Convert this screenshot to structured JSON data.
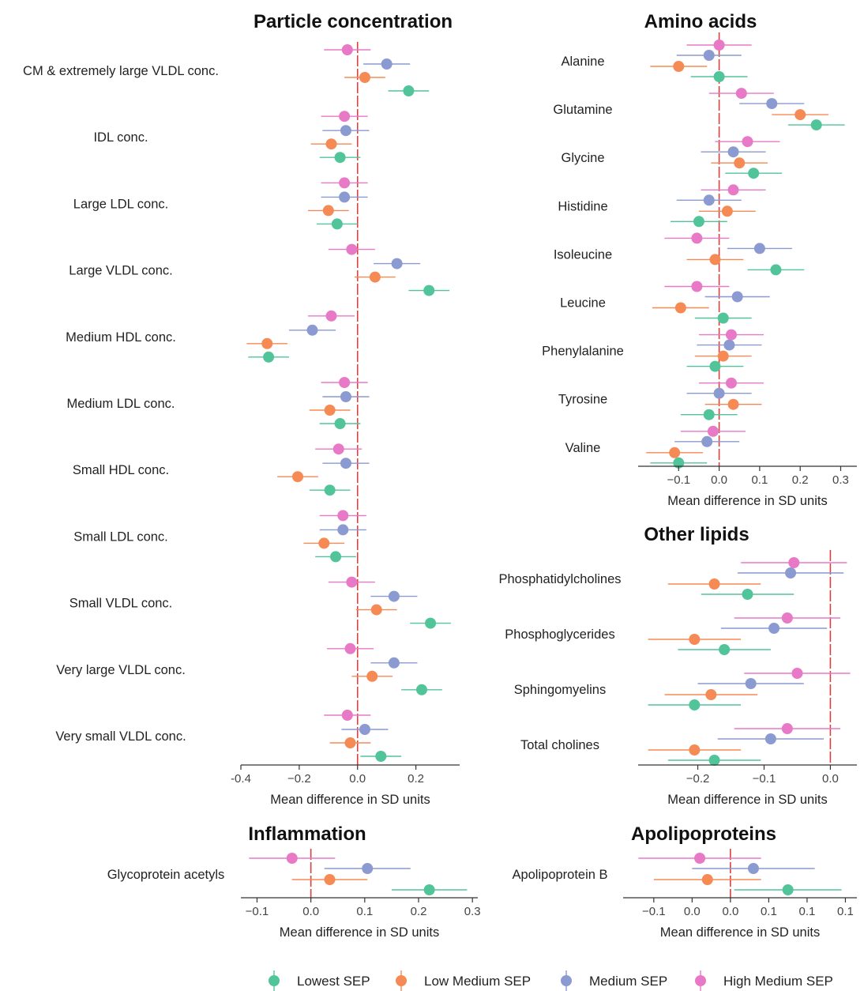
{
  "chart_data": [
    {
      "type": "forest",
      "title": "Particle concentration",
      "xlabel": "Mean difference in SD units",
      "xlim": [
        -0.4,
        0.35
      ],
      "xticks": [
        -0.4,
        -0.2,
        0.0,
        0.2
      ],
      "xtick_labels": [
        "-0.4",
        "−0.2",
        "0.0",
        "0.2"
      ],
      "reference_line": 0,
      "rows": [
        {
          "label": "CM & extremely large VLDL conc.",
          "values": [
            0.175,
            0.025,
            0.1,
            -0.035
          ],
          "ci_halfwidth": [
            0.07,
            0.07,
            0.08,
            0.08
          ]
        },
        {
          "label": "IDL conc.",
          "values": [
            -0.06,
            -0.09,
            -0.04,
            -0.045
          ],
          "ci_halfwidth": [
            0.07,
            0.07,
            0.08,
            0.08
          ]
        },
        {
          "label": "Large LDL conc.",
          "values": [
            -0.07,
            -0.1,
            -0.045,
            -0.045
          ],
          "ci_halfwidth": [
            0.07,
            0.07,
            0.08,
            0.08
          ]
        },
        {
          "label": "Large VLDL conc.",
          "values": [
            0.245,
            0.06,
            0.135,
            -0.02
          ],
          "ci_halfwidth": [
            0.07,
            0.07,
            0.08,
            0.08
          ]
        },
        {
          "label": "Medium HDL conc.",
          "values": [
            -0.305,
            -0.31,
            -0.155,
            -0.09
          ],
          "ci_halfwidth": [
            0.07,
            0.07,
            0.08,
            0.08
          ]
        },
        {
          "label": "Medium LDL conc.",
          "values": [
            -0.06,
            -0.095,
            -0.04,
            -0.045
          ],
          "ci_halfwidth": [
            0.07,
            0.07,
            0.08,
            0.08
          ]
        },
        {
          "label": "Small HDL conc.",
          "values": [
            -0.095,
            -0.205,
            -0.04,
            -0.065
          ],
          "ci_halfwidth": [
            0.07,
            0.07,
            0.08,
            0.08
          ]
        },
        {
          "label": "Small LDL conc.",
          "values": [
            -0.075,
            -0.115,
            -0.05,
            -0.05
          ],
          "ci_halfwidth": [
            0.07,
            0.07,
            0.08,
            0.08
          ]
        },
        {
          "label": "Small VLDL conc.",
          "values": [
            0.25,
            0.065,
            0.125,
            -0.02
          ],
          "ci_halfwidth": [
            0.07,
            0.07,
            0.08,
            0.08
          ]
        },
        {
          "label": "Very large VLDL conc.",
          "values": [
            0.22,
            0.05,
            0.125,
            -0.025
          ],
          "ci_halfwidth": [
            0.07,
            0.07,
            0.08,
            0.08
          ]
        },
        {
          "label": "Very small VLDL conc.",
          "values": [
            0.08,
            -0.025,
            0.025,
            -0.035
          ],
          "ci_halfwidth": [
            0.07,
            0.07,
            0.08,
            0.08
          ]
        }
      ]
    },
    {
      "type": "forest",
      "title": "Amino acids",
      "xlabel": "Mean difference in SD units",
      "xlim": [
        -0.2,
        0.34
      ],
      "xticks": [
        -0.1,
        0.0,
        0.1,
        0.2,
        0.3
      ],
      "xtick_labels": [
        "−0.1",
        "0.0",
        "0.1",
        "0.2",
        "0.3"
      ],
      "reference_line": 0,
      "rows": [
        {
          "label": "Alanine",
          "values": [
            0.0,
            -0.1,
            -0.025,
            0.0
          ],
          "ci_halfwidth": [
            0.07,
            0.07,
            0.08,
            0.08
          ]
        },
        {
          "label": "Glutamine",
          "values": [
            0.24,
            0.2,
            0.13,
            0.055
          ],
          "ci_halfwidth": [
            0.07,
            0.07,
            0.08,
            0.08
          ]
        },
        {
          "label": "Glycine",
          "values": [
            0.085,
            0.05,
            0.035,
            0.07
          ],
          "ci_halfwidth": [
            0.07,
            0.07,
            0.08,
            0.08
          ]
        },
        {
          "label": "Histidine",
          "values": [
            -0.05,
            0.02,
            -0.025,
            0.035
          ],
          "ci_halfwidth": [
            0.07,
            0.07,
            0.08,
            0.08
          ]
        },
        {
          "label": "Isoleucine",
          "values": [
            0.14,
            -0.01,
            0.1,
            -0.055
          ],
          "ci_halfwidth": [
            0.07,
            0.07,
            0.08,
            0.08
          ]
        },
        {
          "label": "Leucine",
          "values": [
            0.01,
            -0.095,
            0.045,
            -0.055
          ],
          "ci_halfwidth": [
            0.07,
            0.07,
            0.08,
            0.08
          ]
        },
        {
          "label": "Phenylalanine",
          "values": [
            -0.01,
            0.01,
            0.025,
            0.03
          ],
          "ci_halfwidth": [
            0.07,
            0.07,
            0.08,
            0.08
          ]
        },
        {
          "label": "Tyrosine",
          "values": [
            -0.025,
            0.035,
            0.0,
            0.03
          ],
          "ci_halfwidth": [
            0.07,
            0.07,
            0.08,
            0.08
          ]
        },
        {
          "label": "Valine",
          "values": [
            -0.1,
            -0.11,
            -0.03,
            -0.015
          ],
          "ci_halfwidth": [
            0.07,
            0.07,
            0.08,
            0.08
          ]
        }
      ]
    },
    {
      "type": "forest",
      "title": "Other lipids",
      "xlabel": "Mean difference in SD units",
      "xlim": [
        -0.29,
        0.04
      ],
      "xticks": [
        -0.2,
        -0.1,
        0.0
      ],
      "xtick_labels": [
        "−0.2",
        "−0.1",
        "0.0"
      ],
      "reference_line": 0,
      "rows": [
        {
          "label": "Phosphatidylcholines",
          "values": [
            -0.125,
            -0.175,
            -0.06,
            -0.055
          ],
          "ci_halfwidth": [
            0.07,
            0.07,
            0.08,
            0.08
          ]
        },
        {
          "label": "Phosphoglycerides",
          "values": [
            -0.16,
            -0.205,
            -0.085,
            -0.065
          ],
          "ci_halfwidth": [
            0.07,
            0.07,
            0.08,
            0.08
          ]
        },
        {
          "label": "Sphingomyelins",
          "values": [
            -0.205,
            -0.18,
            -0.12,
            -0.05
          ],
          "ci_halfwidth": [
            0.07,
            0.07,
            0.08,
            0.08
          ]
        },
        {
          "label": "Total cholines",
          "values": [
            -0.175,
            -0.205,
            -0.09,
            -0.065
          ],
          "ci_halfwidth": [
            0.07,
            0.07,
            0.08,
            0.08
          ]
        }
      ]
    },
    {
      "type": "forest",
      "title": "Inflammation",
      "xlabel": "Mean difference in SD units",
      "xlim": [
        -0.13,
        0.31
      ],
      "xticks": [
        -0.1,
        0.0,
        0.1,
        0.2,
        0.3
      ],
      "xtick_labels": [
        "−0.1",
        "0.0",
        "0.1",
        "0.2",
        "0.3"
      ],
      "reference_line": 0,
      "rows": [
        {
          "label": "Glycoprotein acetyls",
          "values": [
            0.22,
            0.035,
            0.105,
            -0.035
          ],
          "ci_halfwidth": [
            0.07,
            0.07,
            0.08,
            0.08
          ]
        }
      ]
    },
    {
      "type": "forest",
      "title": "Apolipoproteins",
      "xlabel": "Mean difference in SD units",
      "xlim": [
        -0.14,
        0.165
      ],
      "xticks": [
        -0.1,
        -0.05,
        0.0,
        0.05,
        0.1,
        0.15
      ],
      "xtick_labels": [
        "−0.1",
        "0.0",
        "0.0",
        "0.1",
        "0.1",
        "0.1"
      ],
      "reference_line": 0,
      "rows": [
        {
          "label": "Apolipoprotein B",
          "values": [
            0.075,
            -0.03,
            0.03,
            -0.04
          ],
          "ci_halfwidth": [
            0.07,
            0.07,
            0.08,
            0.08
          ]
        }
      ]
    }
  ],
  "legend": {
    "placement": "bottom",
    "items": [
      {
        "label": "Lowest SEP",
        "color": "#52c49a"
      },
      {
        "label": "Low Medium SEP",
        "color": "#f58a55"
      },
      {
        "label": "Medium SEP",
        "color": "#8b9ad0"
      },
      {
        "label": "High Medium SEP",
        "color": "#e879c7"
      }
    ]
  },
  "colors": {
    "reference_line": "#d94040",
    "axis": "#333333"
  }
}
